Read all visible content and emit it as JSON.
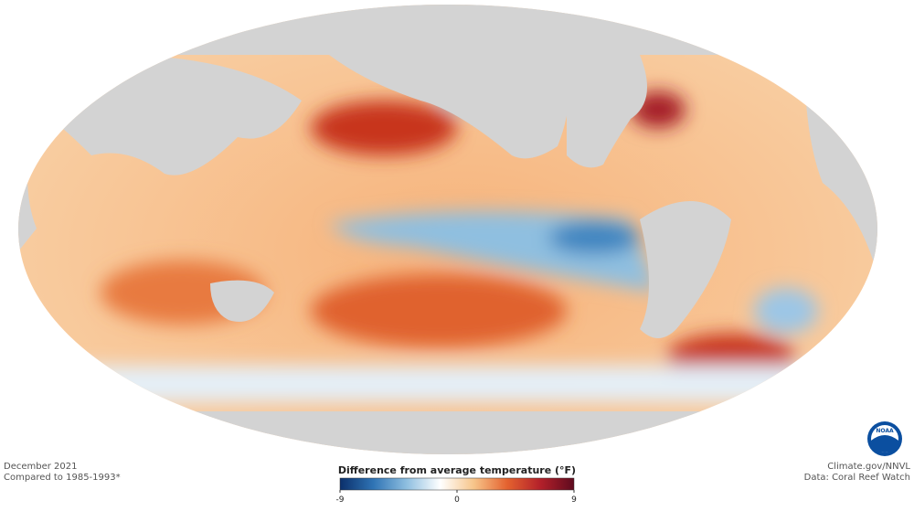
{
  "map": {
    "title": "December 2021",
    "subtitle": "Compared to 1985-1993*",
    "credit": "Climate.gov/NNVL",
    "source": "Data: Coral Reef Watch",
    "logo": "NOAA"
  },
  "legend": {
    "title": "Difference from average temperature (°F)",
    "lim": [
      -9,
      9
    ],
    "ticks": [
      -9,
      0,
      9
    ],
    "colors": [
      "#0b2f6b",
      "#2f74b5",
      "#8fbfe0",
      "#ffffff",
      "#f7c58a",
      "#e4622f",
      "#b3202a",
      "#5e0a1e"
    ]
  }
}
